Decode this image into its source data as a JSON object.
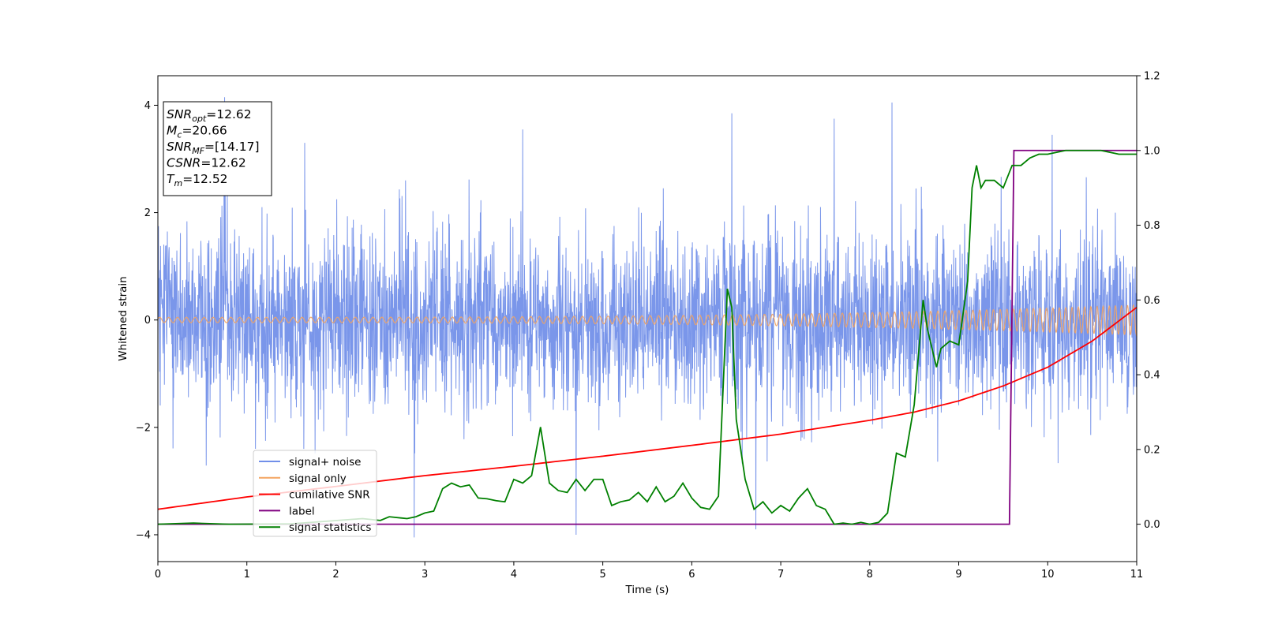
{
  "chart_data": {
    "type": "line",
    "xlabel": "Time (s)",
    "ylabel": "Whitened strain",
    "xlim": [
      0,
      11
    ],
    "ylim_left": [
      -4.5,
      4.55
    ],
    "ylim_right": [
      -0.1,
      1.2
    ],
    "x_ticks": [
      0,
      1,
      2,
      3,
      4,
      5,
      6,
      7,
      8,
      9,
      10,
      11
    ],
    "x_tick_labels": [
      "0",
      "1",
      "2",
      "3",
      "4",
      "5",
      "6",
      "7",
      "8",
      "9",
      "10",
      "11"
    ],
    "y_left_ticks": [
      -4,
      -2,
      0,
      2,
      4
    ],
    "y_left_tick_labels": [
      "−4",
      "−2",
      "0",
      "2",
      "4"
    ],
    "y_right_ticks": [
      0.0,
      0.2,
      0.4,
      0.6,
      0.8,
      1.0,
      1.2
    ],
    "y_right_tick_labels": [
      "0.0",
      "0.2",
      "0.4",
      "0.6",
      "0.8",
      "1.0",
      "1.2"
    ],
    "grid": false,
    "legend_position": "lower-left",
    "info_box": {
      "position": "upper-left",
      "rows": [
        {
          "main": "SNR",
          "sub": "opt",
          "value": "=12.62"
        },
        {
          "main": "M",
          "sub": "c",
          "value": "=20.66"
        },
        {
          "main": "SNR",
          "sub": "MF",
          "value": "=[14.17]"
        },
        {
          "main": "CSNR",
          "sub": "",
          "value": "=12.62"
        },
        {
          "main": "T",
          "sub": "m",
          "value": "=12.52"
        }
      ]
    },
    "series": [
      {
        "name": "signal+ noise",
        "axis": "left",
        "color": "#4169e1",
        "kind": "noise",
        "envelope_approx": 1.6,
        "spike_peaks": [
          [
            0.75,
            4.15
          ],
          [
            1.65,
            3.3
          ],
          [
            4.1,
            3.55
          ],
          [
            6.45,
            3.85
          ],
          [
            7.6,
            3.75
          ],
          [
            8.25,
            4.05
          ],
          [
            10.05,
            3.45
          ],
          [
            2.88,
            -4.05
          ],
          [
            4.7,
            -4.0
          ],
          [
            6.72,
            -3.9
          ]
        ]
      },
      {
        "name": "signal only",
        "axis": "left",
        "color": "#f4a460",
        "kind": "chirp",
        "amplitude_start": 0.05,
        "amplitude_end": 0.28
      },
      {
        "name": "cumilative SNR",
        "axis": "right",
        "color": "#ff0000",
        "x": [
          0,
          1,
          2,
          3,
          4,
          5,
          6,
          7,
          8,
          8.5,
          9,
          9.5,
          10,
          10.5,
          11
        ],
        "y": [
          0.04,
          0.073,
          0.101,
          0.13,
          0.155,
          0.182,
          0.211,
          0.241,
          0.278,
          0.3,
          0.33,
          0.37,
          0.42,
          0.49,
          0.58
        ]
      },
      {
        "name": "label",
        "axis": "right",
        "color": "#800080",
        "x": [
          0,
          9.57,
          9.62,
          11
        ],
        "y": [
          0.0,
          0.0,
          1.0,
          1.0
        ]
      },
      {
        "name": "signal statistics",
        "axis": "right",
        "color": "#008000",
        "x": [
          0,
          0.4,
          0.8,
          1.5,
          2.3,
          2.5,
          2.6,
          2.8,
          2.9,
          3.0,
          3.1,
          3.2,
          3.3,
          3.4,
          3.5,
          3.6,
          3.7,
          3.8,
          3.9,
          4.0,
          4.1,
          4.2,
          4.3,
          4.4,
          4.5,
          4.6,
          4.7,
          4.8,
          4.9,
          5.0,
          5.1,
          5.2,
          5.3,
          5.4,
          5.5,
          5.6,
          5.7,
          5.8,
          5.9,
          6.0,
          6.1,
          6.2,
          6.3,
          6.4,
          6.45,
          6.5,
          6.6,
          6.7,
          6.8,
          6.9,
          7.0,
          7.1,
          7.2,
          7.3,
          7.4,
          7.5,
          7.6,
          7.7,
          7.8,
          7.9,
          8.0,
          8.1,
          8.2,
          8.3,
          8.4,
          8.5,
          8.6,
          8.65,
          8.75,
          8.8,
          8.9,
          9.0,
          9.1,
          9.15,
          9.2,
          9.25,
          9.3,
          9.4,
          9.5,
          9.6,
          9.7,
          9.8,
          9.9,
          10.0,
          10.2,
          10.4,
          10.6,
          10.8,
          11.0
        ],
        "y": [
          0.0,
          0.003,
          0.0,
          0.001,
          0.015,
          0.01,
          0.02,
          0.015,
          0.02,
          0.03,
          0.035,
          0.095,
          0.11,
          0.1,
          0.105,
          0.07,
          0.068,
          0.063,
          0.06,
          0.12,
          0.11,
          0.13,
          0.26,
          0.11,
          0.09,
          0.085,
          0.12,
          0.09,
          0.12,
          0.12,
          0.05,
          0.06,
          0.065,
          0.085,
          0.06,
          0.1,
          0.06,
          0.075,
          0.11,
          0.07,
          0.045,
          0.04,
          0.075,
          0.63,
          0.58,
          0.28,
          0.12,
          0.04,
          0.06,
          0.03,
          0.05,
          0.035,
          0.07,
          0.095,
          0.05,
          0.04,
          0.0,
          0.003,
          0.0,
          0.005,
          0.0,
          0.005,
          0.03,
          0.19,
          0.18,
          0.32,
          0.6,
          0.52,
          0.42,
          0.47,
          0.49,
          0.48,
          0.65,
          0.9,
          0.96,
          0.9,
          0.92,
          0.92,
          0.9,
          0.96,
          0.96,
          0.98,
          0.99,
          0.99,
          1.0,
          1.0,
          1.0,
          0.99,
          0.99
        ]
      }
    ]
  }
}
